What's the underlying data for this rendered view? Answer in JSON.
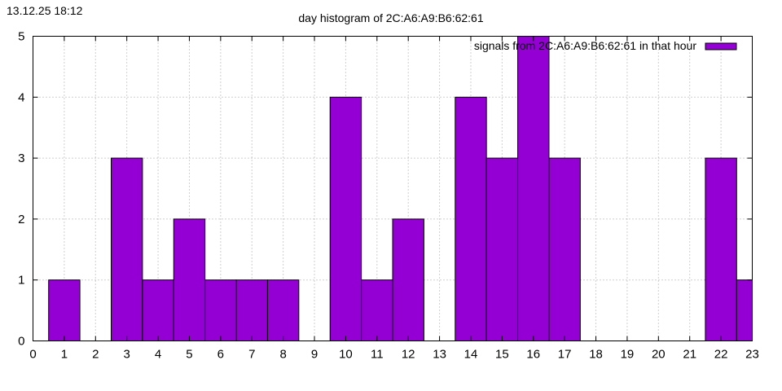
{
  "timestamp": "13.12.25 18:12",
  "chart_data": {
    "type": "bar",
    "title": "day histogram of 2C:A6:A9:B6:62:61",
    "xlabel": "",
    "ylabel": "",
    "xlim": [
      0,
      23
    ],
    "ylim": [
      0,
      5
    ],
    "xticks": [
      "0",
      "1",
      "2",
      "3",
      "4",
      "5",
      "6",
      "7",
      "8",
      "9",
      "10",
      "11",
      "12",
      "13",
      "14",
      "15",
      "16",
      "17",
      "18",
      "19",
      "20",
      "21",
      "22",
      "23"
    ],
    "yticks": [
      "0",
      "1",
      "2",
      "3",
      "4",
      "5"
    ],
    "grid": true,
    "legend_position": "top-right",
    "series": [
      {
        "name": "signals from 2C:A6:A9:B6:62:61 in that hour",
        "color": "#9400d3",
        "x": [
          1,
          3,
          4,
          5,
          6,
          7,
          8,
          10,
          11,
          12,
          14,
          15,
          16,
          17,
          22,
          23
        ],
        "values": [
          1,
          3,
          1,
          2,
          1,
          1,
          1,
          4,
          1,
          2,
          4,
          3,
          5,
          3,
          3,
          1
        ]
      }
    ]
  }
}
